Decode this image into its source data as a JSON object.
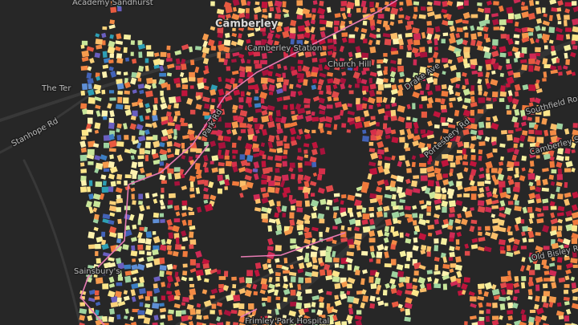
{
  "labels": [
    {
      "text": "Academy Sandhurst"
    },
    {
      "text": "Camberley"
    },
    {
      "text": "Camberley Station"
    },
    {
      "text": "Church Hill"
    },
    {
      "text": "Drake Ave"
    },
    {
      "text": "The Ter"
    },
    {
      "text": "Stanhope Rd"
    },
    {
      "text": "Park Rd"
    },
    {
      "text": "Southfield Road"
    },
    {
      "text": "Sainsbury's"
    },
    {
      "text": "Frimley Park Hospital"
    },
    {
      "text": "Old Bisley Rd"
    },
    {
      "text": "Camberley South Gate"
    },
    {
      "text": "Portesbery Rd"
    }
  ]
}
